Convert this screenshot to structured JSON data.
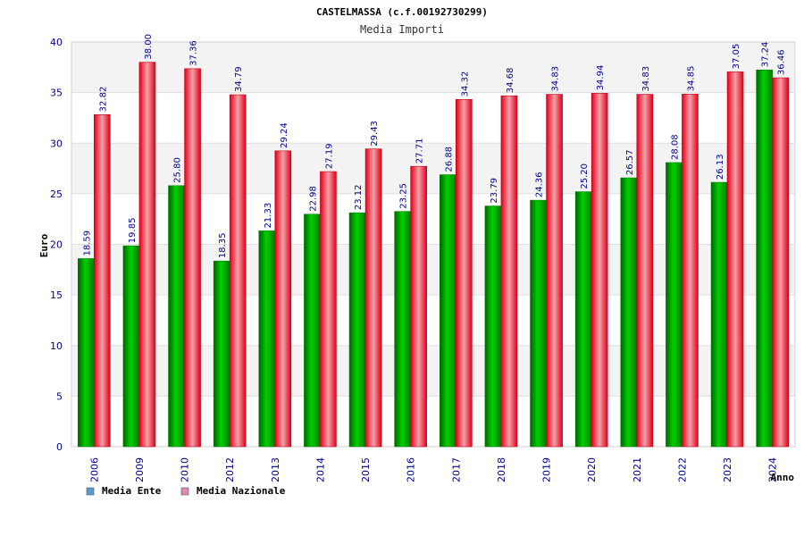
{
  "chart_data": {
    "type": "bar",
    "title": "CASTELMASSA (c.f.00192730299)",
    "subtitle": "Media Importi",
    "xlabel": "Anno",
    "ylabel": "Euro",
    "ylim": [
      0,
      40
    ],
    "yticks": [
      0,
      5,
      10,
      15,
      20,
      25,
      30,
      35,
      40
    ],
    "grid": true,
    "legend_position": "bottom-left",
    "categories": [
      "2006",
      "2009",
      "2010",
      "2012",
      "2013",
      "2014",
      "2015",
      "2016",
      "2017",
      "2018",
      "2019",
      "2020",
      "2021",
      "2022",
      "2023",
      "2024"
    ],
    "series": [
      {
        "name": "Media Ente",
        "color": "#00c000",
        "legend_color": "#5b9bd5",
        "values": [
          18.59,
          19.85,
          25.8,
          18.35,
          21.33,
          22.98,
          23.12,
          23.25,
          26.88,
          23.79,
          24.36,
          25.2,
          26.57,
          28.08,
          26.13,
          37.24
        ],
        "labels": [
          "18.59",
          "19.85",
          "25.80",
          "18.35",
          "21.33",
          "22.98",
          "23.12",
          "23.25",
          "26.88",
          "23.79",
          "24.36",
          "25.20",
          "26.57",
          "28.08",
          "26.13",
          "37.24"
        ]
      },
      {
        "name": "Media Nazionale",
        "color": "#e8001c",
        "legend_color": "#d98cb3",
        "values": [
          32.82,
          38.0,
          37.36,
          34.79,
          29.24,
          27.19,
          29.43,
          27.71,
          34.32,
          34.68,
          34.83,
          34.94,
          34.83,
          34.85,
          37.05,
          36.46
        ],
        "labels": [
          "32.82",
          "38.00",
          "37.36",
          "34.79",
          "29.24",
          "27.19",
          "29.43",
          "27.71",
          "34.32",
          "34.68",
          "34.83",
          "34.94",
          "34.83",
          "34.85",
          "37.05",
          "36.46"
        ]
      }
    ]
  }
}
